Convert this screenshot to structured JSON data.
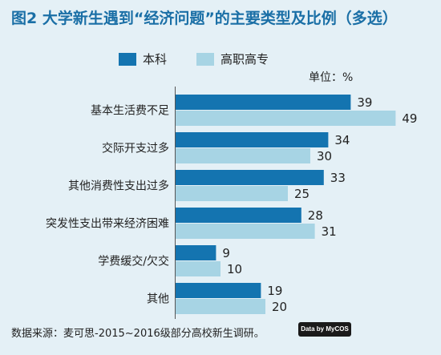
{
  "chart_data": {
    "type": "bar",
    "orientation": "horizontal",
    "title": "图2 大学新生遇到“经济问题”的主要类型及比例（多选）",
    "unit_label": "单位：%",
    "categories": [
      "基本生活费不足",
      "交际开支过多",
      "其他消费性支出过多",
      "突发性支出带来经济困难",
      "学费缓交/欠交",
      "其他"
    ],
    "series": [
      {
        "name": "本科",
        "color": "#1474b0",
        "values": [
          39,
          34,
          33,
          28,
          9,
          19
        ]
      },
      {
        "name": "高职高专",
        "color": "#a7d4e4",
        "values": [
          49,
          30,
          25,
          31,
          10,
          20
        ]
      }
    ],
    "xlim": [
      0,
      55
    ],
    "legend_position": "top",
    "grid": false
  },
  "source": "数据来源：麦可思-2015~2016级部分高校新生调研。",
  "logo_text": "Data by MyCOS"
}
